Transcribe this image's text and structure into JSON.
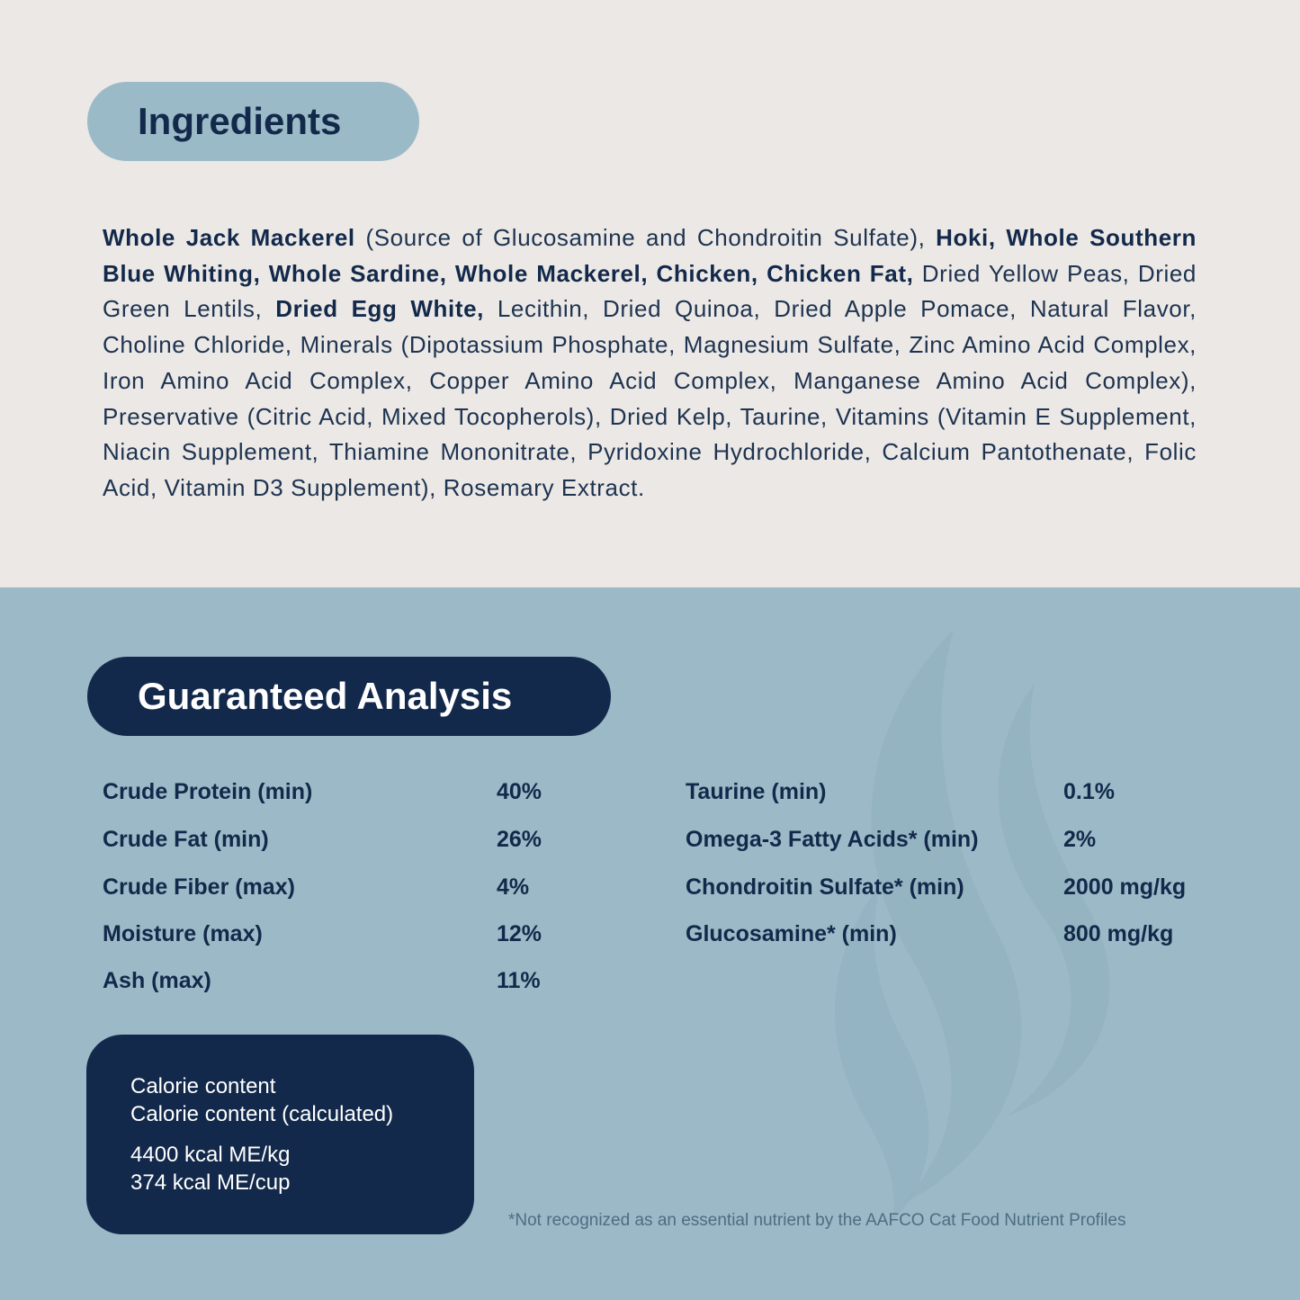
{
  "colors": {
    "top_bg": "#ebe8e5",
    "bottom_bg": "#9bb9c6",
    "navy": "#13294b",
    "pill": "#9bbac7"
  },
  "ingredients": {
    "title": "Ingredients",
    "segments": [
      {
        "text": "Whole Jack Mackerel",
        "bold": true
      },
      {
        "text": " (Source of Glucosamine and Chondroitin Sulfate), ",
        "bold": false
      },
      {
        "text": "Hoki, Whole Southern Blue Whiting, Whole Sardine, Whole Mackerel, Chicken, Chicken Fat,",
        "bold": true
      },
      {
        "text": " Dried Yellow Peas, Dried Green Lentils, ",
        "bold": false
      },
      {
        "text": "Dried Egg White,",
        "bold": true
      },
      {
        "text": " Lecithin, Dried Quinoa, Dried Apple Pomace, Natural Flavor, Choline Chloride, Minerals (Dipotassium Phosphate, Magnesium Sulfate, Zinc Amino Acid Complex, Iron Amino Acid Complex, Copper Amino Acid Complex, Manganese Amino Acid Complex), Preservative (Citric Acid, Mixed Tocopherols), Dried Kelp, Taurine, Vitamins (Vitamin E Supplement, Niacin Supplement, Thiamine Mononitrate, Pyridoxine Hydrochloride, Calcium Pantothenate, Folic Acid, Vitamin D3 Supplement), Rosemary Extract.",
        "bold": false
      }
    ]
  },
  "analysis": {
    "title": "Guaranteed Analysis",
    "left": [
      {
        "label": "Crude Protein (min)",
        "value": "40%"
      },
      {
        "label": "Crude Fat (min)",
        "value": "26%"
      },
      {
        "label": "Crude Fiber (max)",
        "value": "4%"
      },
      {
        "label": "Moisture (max)",
        "value": "12%"
      },
      {
        "label": "Ash (max)",
        "value": "11%"
      }
    ],
    "right": [
      {
        "label": "Taurine (min)",
        "value": "0.1%"
      },
      {
        "label": "Omega-3 Fatty Acids* (min)",
        "value": "2%"
      },
      {
        "label": "Chondroitin Sulfate* (min)",
        "value": "2000 mg/kg"
      },
      {
        "label": "Glucosamine* (min)",
        "value": "800 mg/kg"
      }
    ]
  },
  "calorie": {
    "line1": "Calorie content",
    "line2": "Calorie content (calculated)",
    "value1": "4400 kcal ME/kg",
    "value2": "374 kcal ME/cup"
  },
  "footnote": "*Not recognized as an essential nutrient by the AAFCO Cat Food Nutrient Profiles",
  "decoration_icon": "flame-swirl-icon"
}
